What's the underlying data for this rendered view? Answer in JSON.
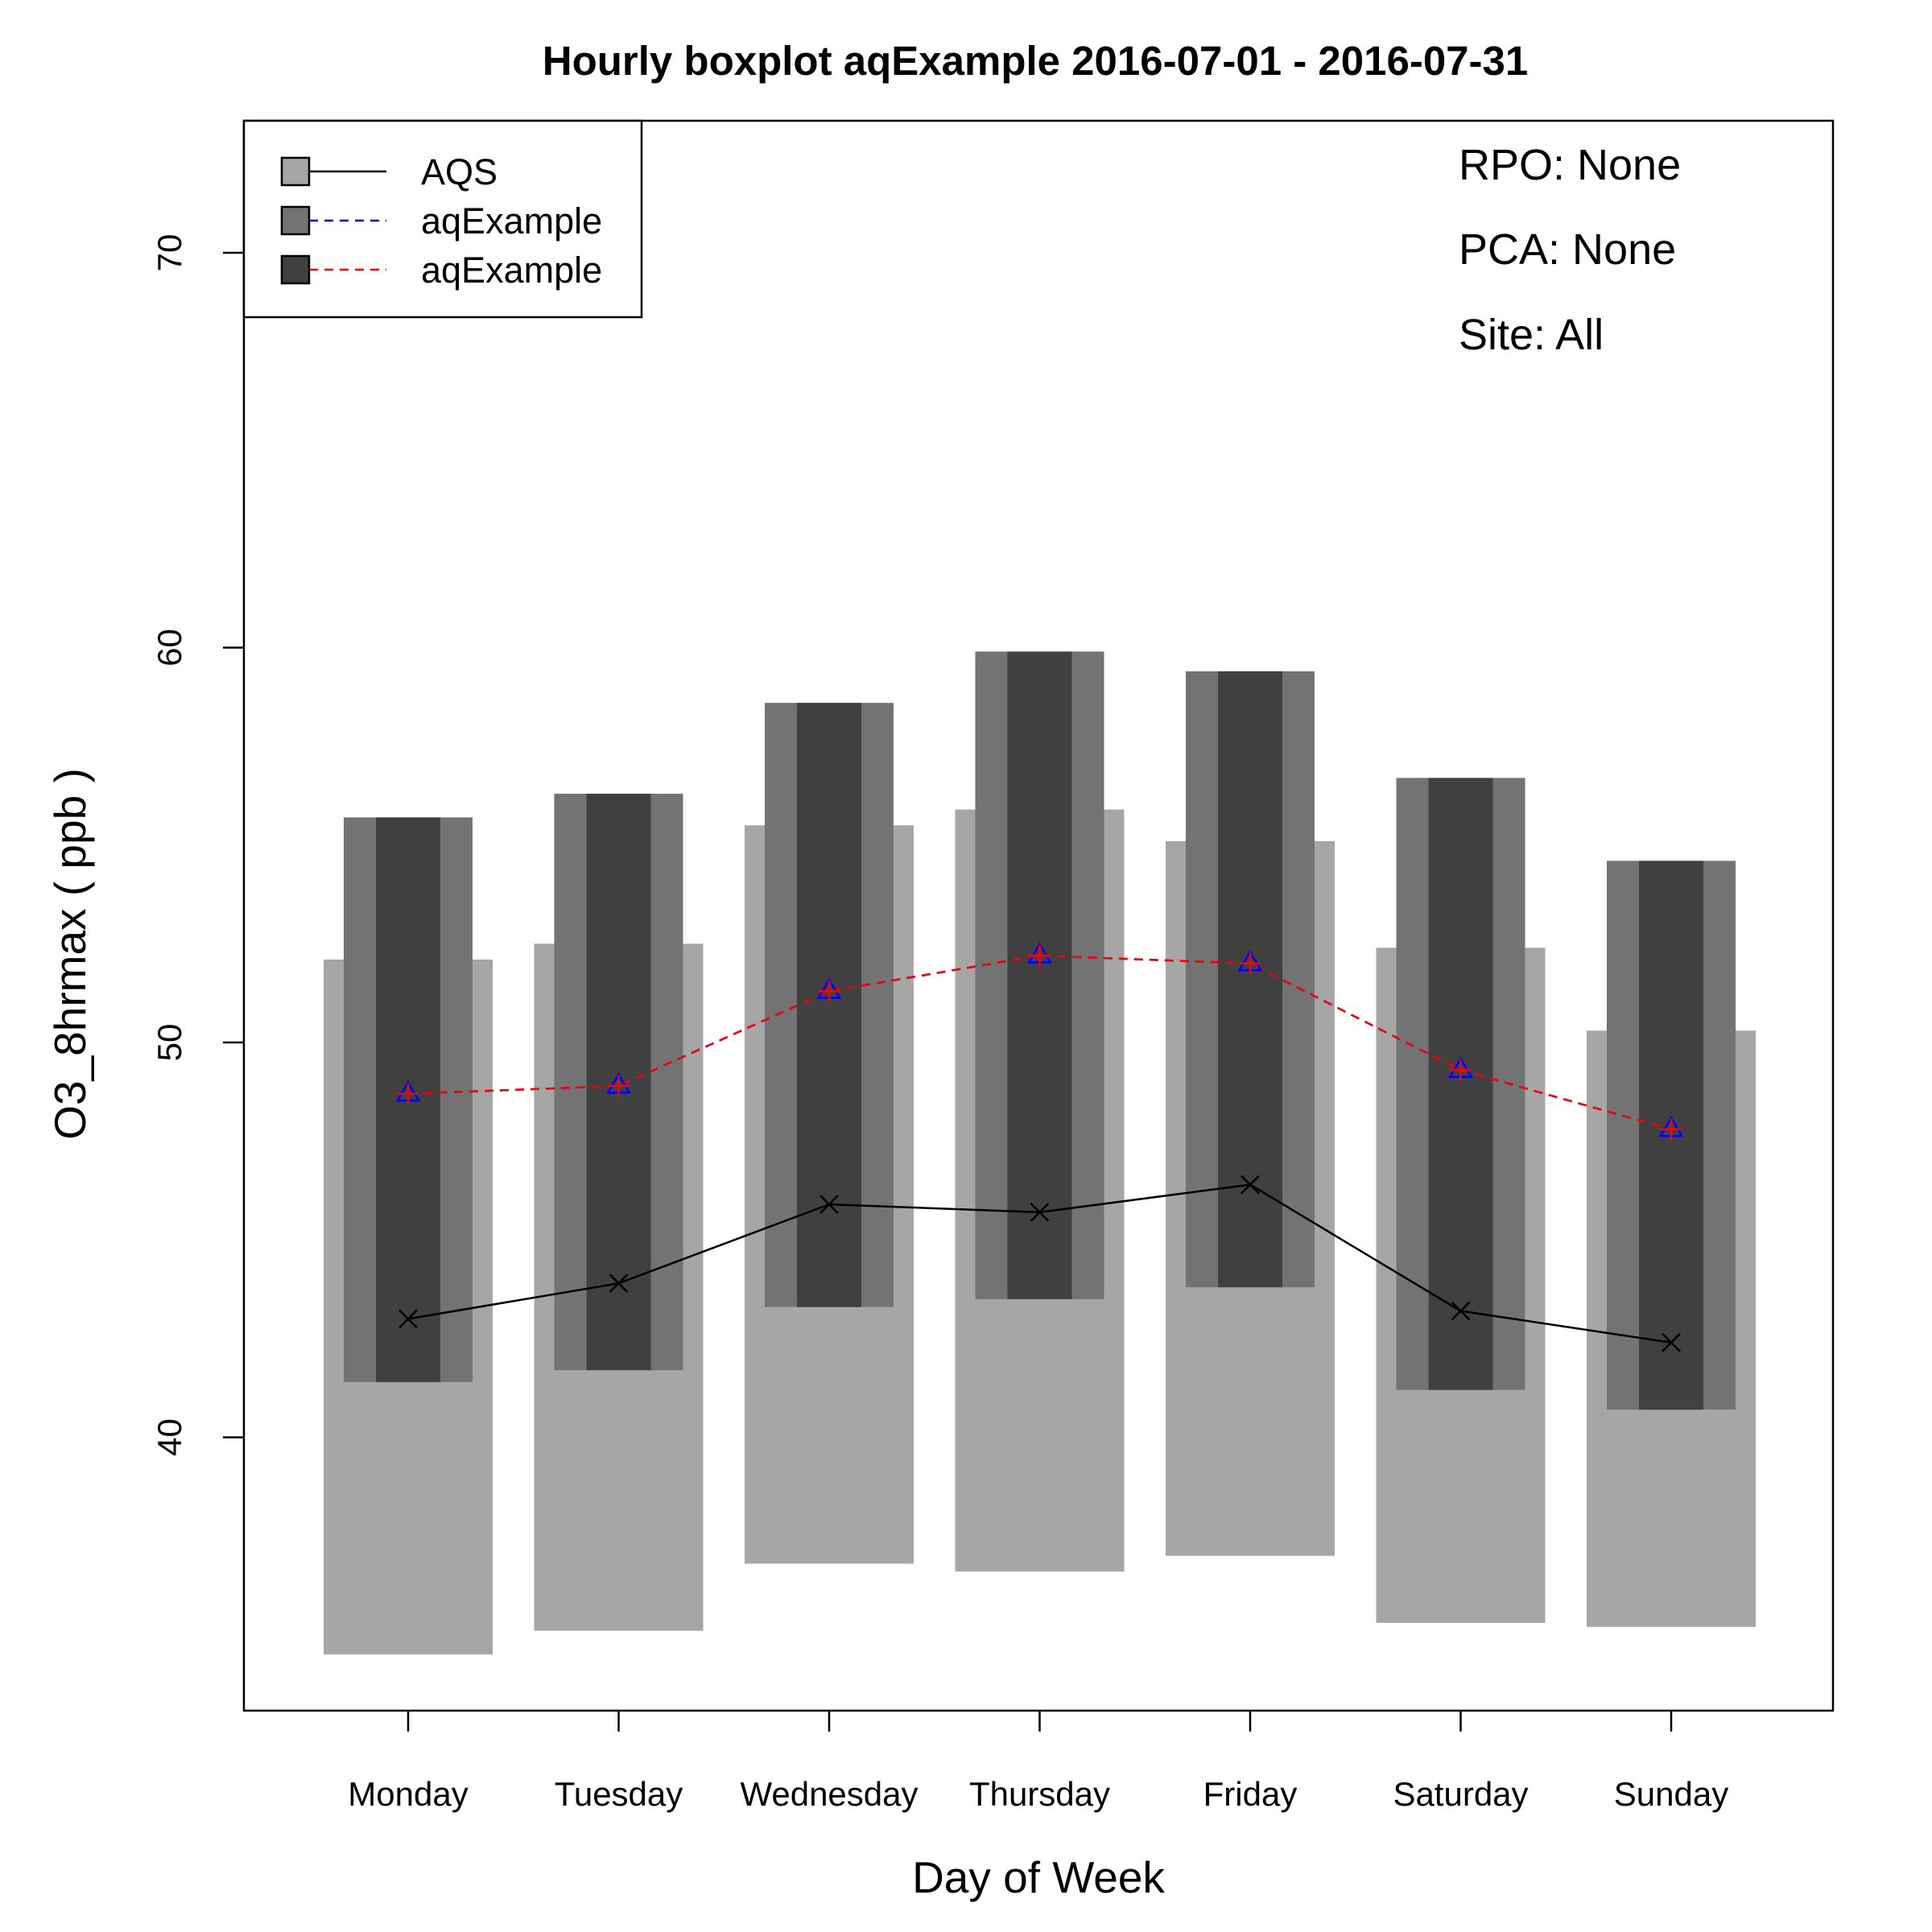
{
  "chart_data": {
    "type": "box",
    "title": "Hourly boxplot aqExample 2016-07-01 - 2016-07-31",
    "xlabel": "Day of Week",
    "ylabel": "O3_8hrmax ( ppb )",
    "categories": [
      "Monday",
      "Tuesday",
      "Wednesday",
      "Thursday",
      "Friday",
      "Saturday",
      "Sunday"
    ],
    "ylim": [
      33,
      73
    ],
    "yticks": [
      40,
      50,
      60,
      70
    ],
    "info_lines": [
      "RPO: None",
      "PCA: None",
      "Site: All"
    ],
    "legend": {
      "position": "top-left",
      "entries": [
        {
          "label": "AQS",
          "fill": "#a6a6a6",
          "line_color": "#000000",
          "dash": "solid"
        },
        {
          "label": "aqExample",
          "fill": "#737373",
          "line_color": "#0000ff",
          "dash": "dashed"
        },
        {
          "label": "aqExample",
          "fill": "#404040",
          "line_color": "#ff0000",
          "dash": "dashed"
        }
      ]
    },
    "series": [
      {
        "name": "AQS",
        "box_color": "#a6a6a6",
        "line_color": "#000000",
        "marker": "x",
        "q25": [
          34.5,
          35.1,
          36.8,
          36.6,
          37.0,
          35.3,
          35.2
        ],
        "q75": [
          52.1,
          52.5,
          55.5,
          55.9,
          55.1,
          52.4,
          50.3
        ],
        "median": [
          43.0,
          43.9,
          45.9,
          45.7,
          46.4,
          43.2,
          42.4
        ]
      },
      {
        "name": "aqExample",
        "box_color": "#737373",
        "line_color": "#0000ff",
        "marker": "triangle",
        "q25": [
          41.4,
          41.7,
          43.3,
          43.5,
          43.8,
          41.2,
          40.7
        ],
        "q75": [
          55.7,
          56.3,
          58.6,
          59.9,
          59.4,
          56.7,
          54.6
        ],
        "median": [
          48.7,
          48.9,
          51.3,
          52.2,
          52.0,
          49.3,
          47.8
        ]
      },
      {
        "name": "aqExample",
        "box_color": "#404040",
        "line_color": "#ff0000",
        "marker": "plus",
        "q25": [
          41.4,
          41.7,
          43.3,
          43.5,
          43.8,
          41.2,
          40.7
        ],
        "q75": [
          55.7,
          56.3,
          58.6,
          59.9,
          59.4,
          56.7,
          54.6
        ],
        "median": [
          48.7,
          48.9,
          51.3,
          52.2,
          52.0,
          49.3,
          47.8
        ]
      }
    ]
  }
}
